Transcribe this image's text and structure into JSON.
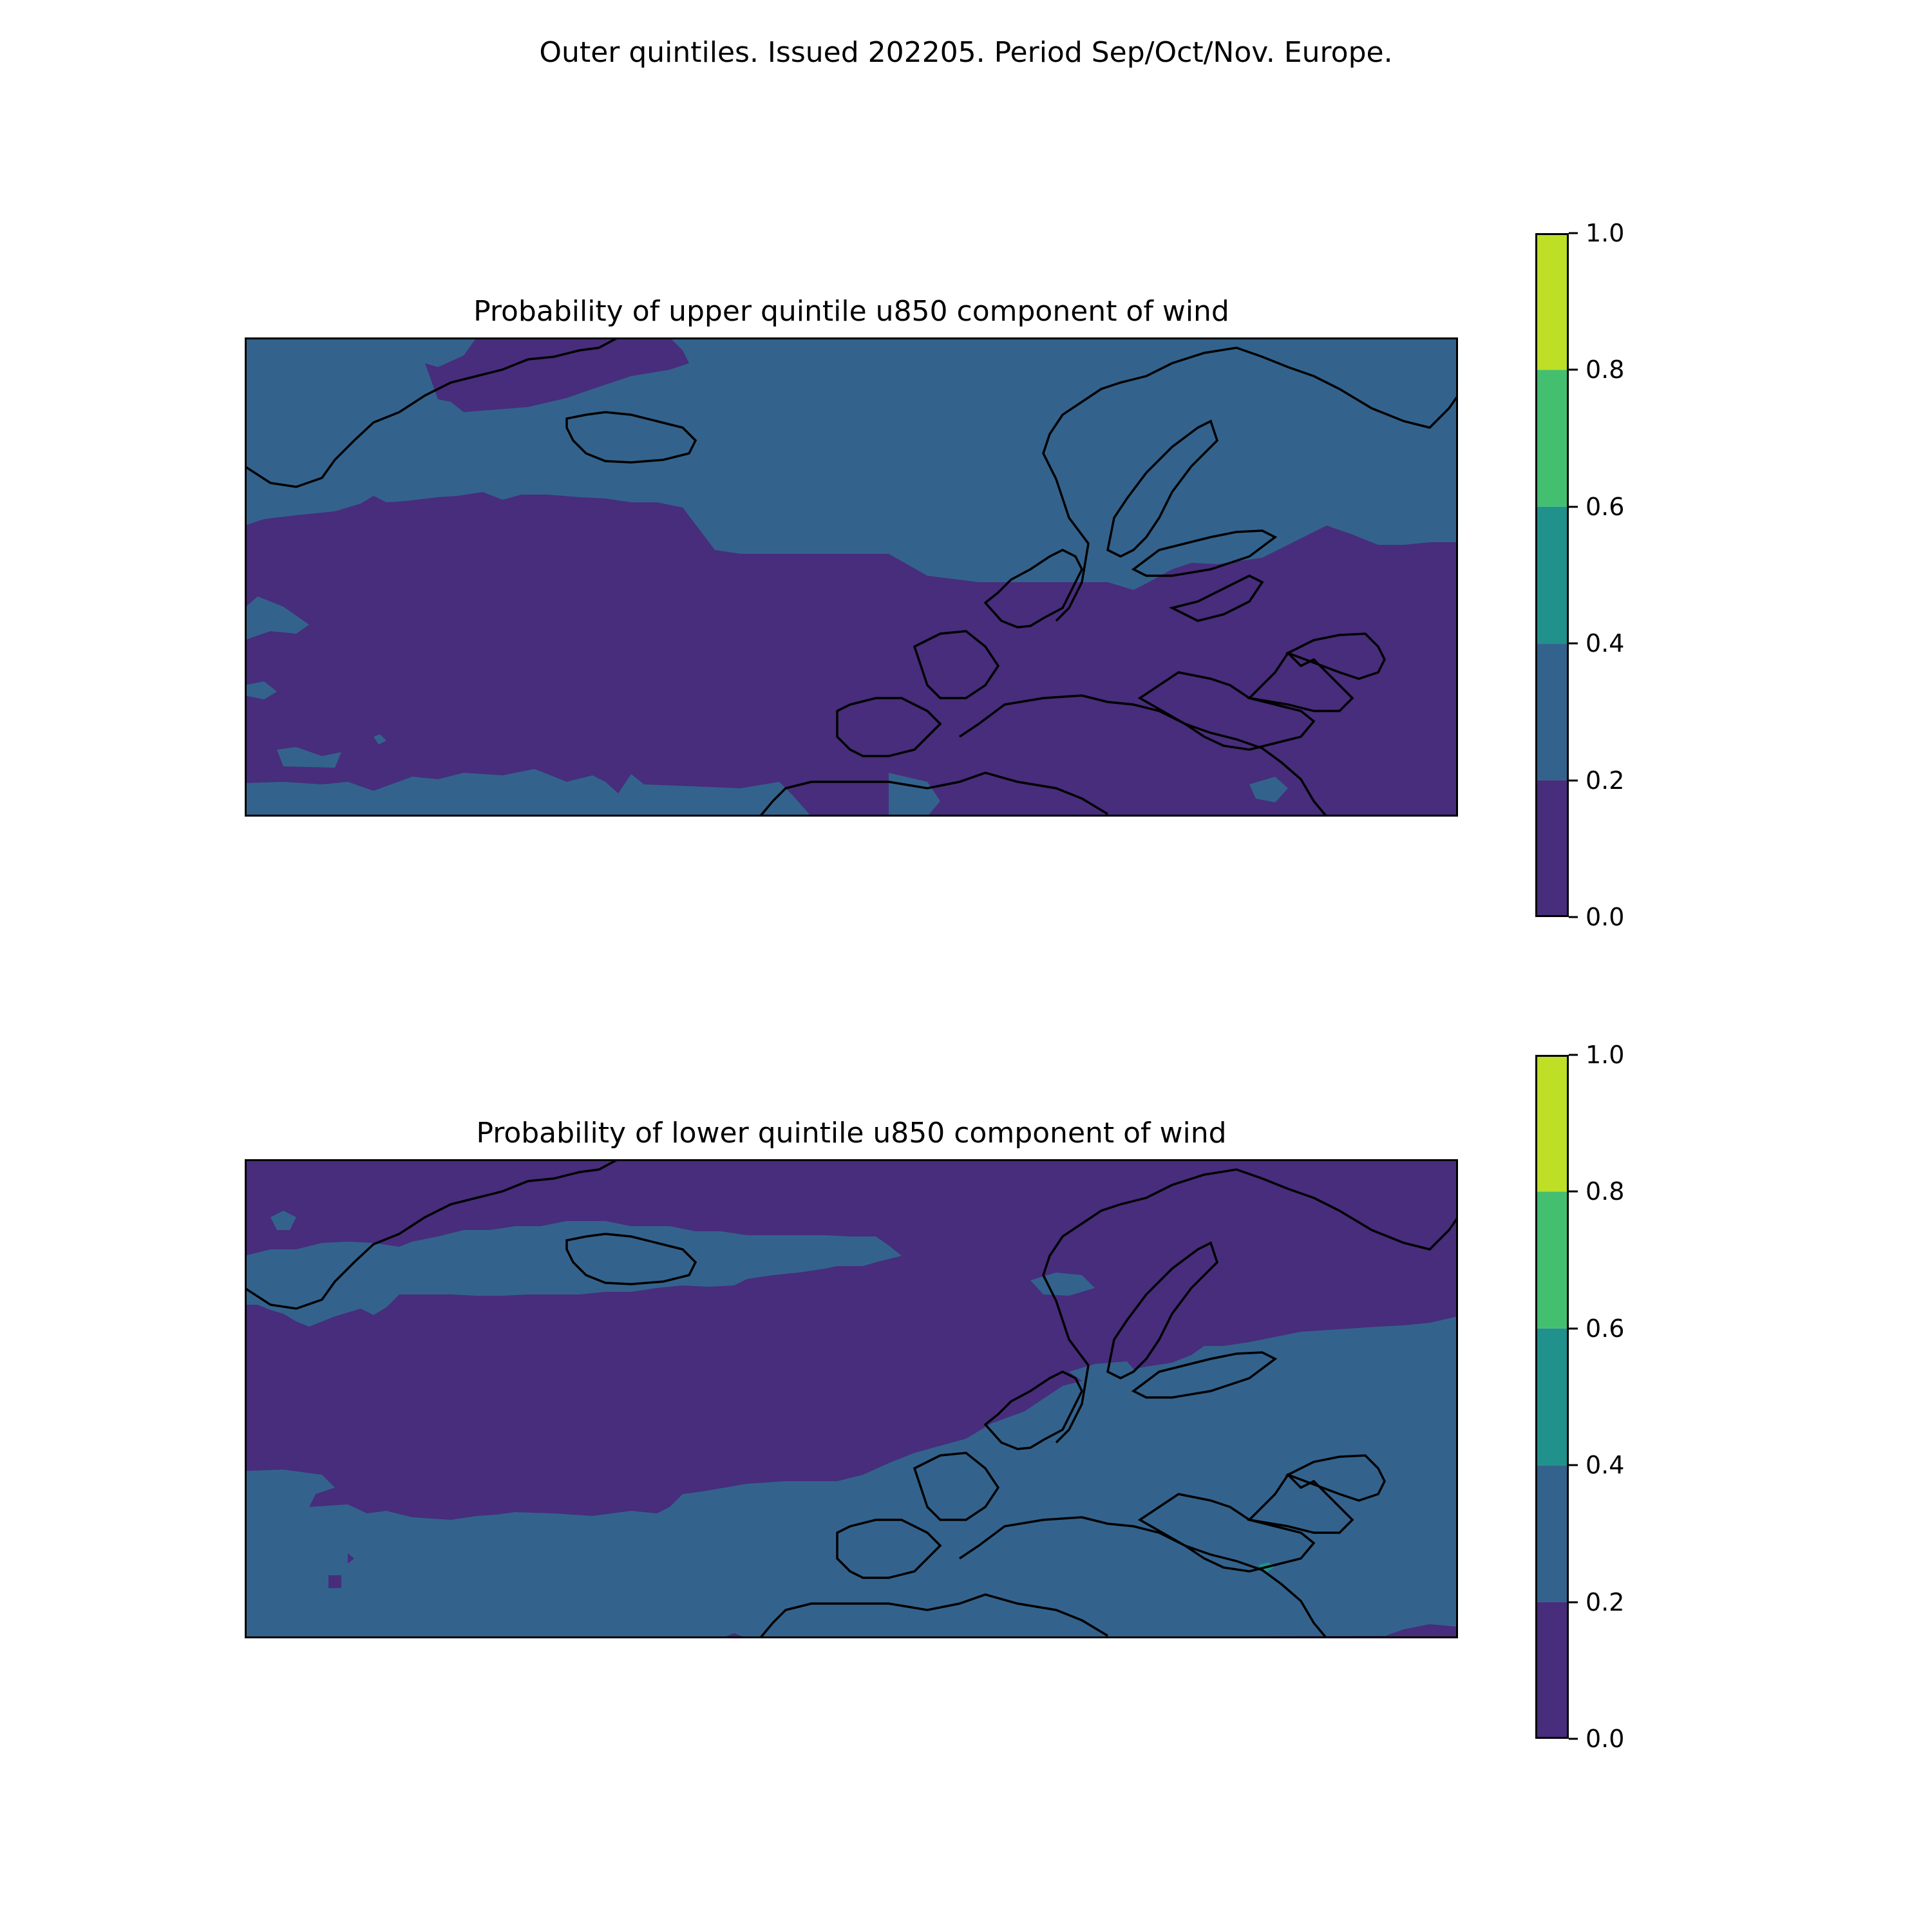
{
  "figure": {
    "suptitle": "Outer quintiles. Issued 202205. Period Sep/Oct/Nov. Europe."
  },
  "colorbar": {
    "ticks": [
      "0.0",
      "0.2",
      "0.4",
      "0.6",
      "0.8",
      "1.0"
    ],
    "levels": [
      0.0,
      0.2,
      0.4,
      0.6,
      0.8,
      1.0
    ],
    "colors": [
      "#472d7b",
      "#33638d",
      "#21918c",
      "#44bf70",
      "#bddf26"
    ]
  },
  "panels": [
    {
      "title": "Probability of upper quintile u850 component of wind",
      "dominant_north_category": "0.2-0.4",
      "dominant_south_category": "0.0-0.2"
    },
    {
      "title": "Probability of lower quintile u850 component of wind",
      "dominant_north_category": "0.0-0.2",
      "dominant_south_category": "0.2-0.4"
    }
  ]
}
